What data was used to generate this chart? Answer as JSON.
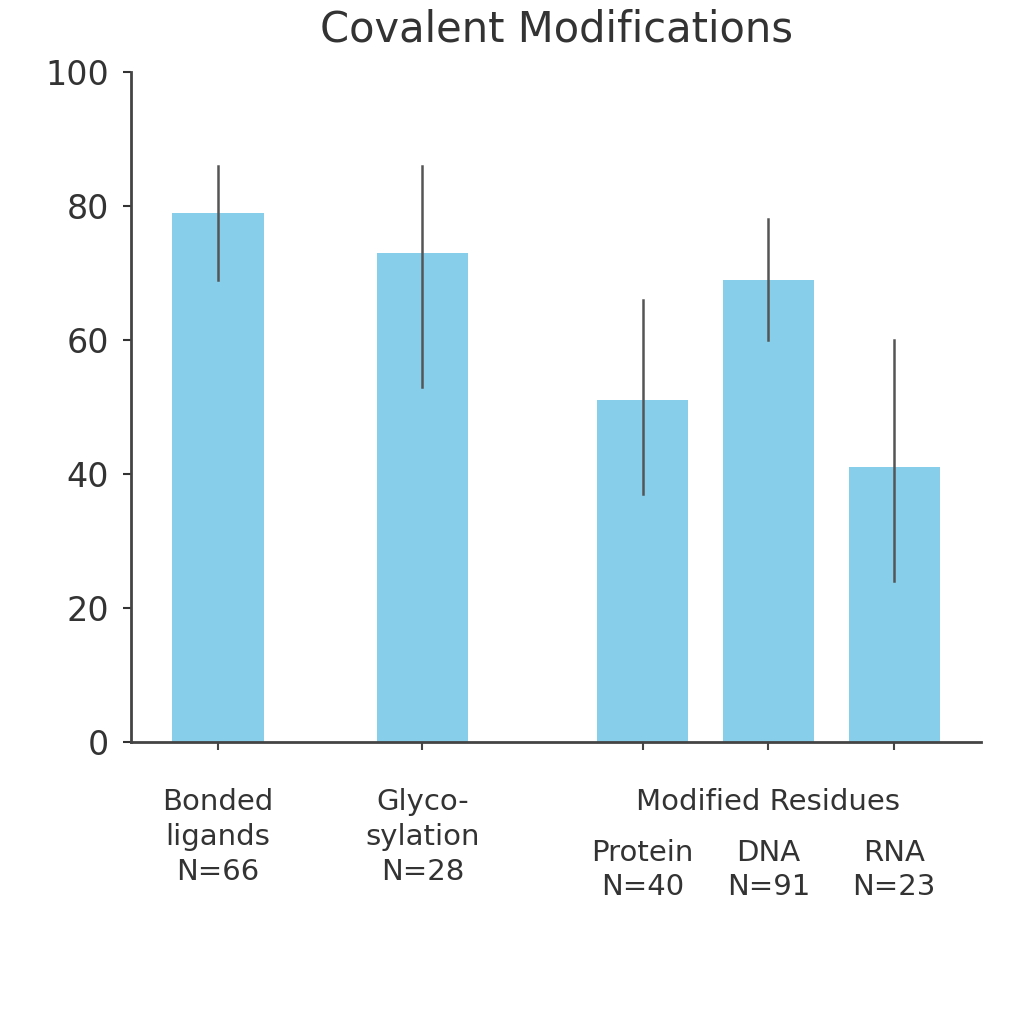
{
  "title": "Covalent Modifications",
  "values": [
    79,
    73,
    51,
    69,
    41
  ],
  "yerr_upper": [
    7,
    13,
    15,
    9,
    19
  ],
  "yerr_lower": [
    10,
    20,
    14,
    9,
    17
  ],
  "bar_color": "#87CEEB",
  "error_color": "#555555",
  "ylim": [
    0,
    100
  ],
  "yticks": [
    0,
    20,
    40,
    60,
    80,
    100
  ],
  "title_fontsize": 30,
  "tick_fontsize": 24,
  "label_fontsize": 21,
  "x_positions": [
    0,
    1.3,
    2.7,
    3.5,
    4.3
  ],
  "bar_width": 0.58,
  "background_color": "#ffffff",
  "spine_color": "#444444"
}
